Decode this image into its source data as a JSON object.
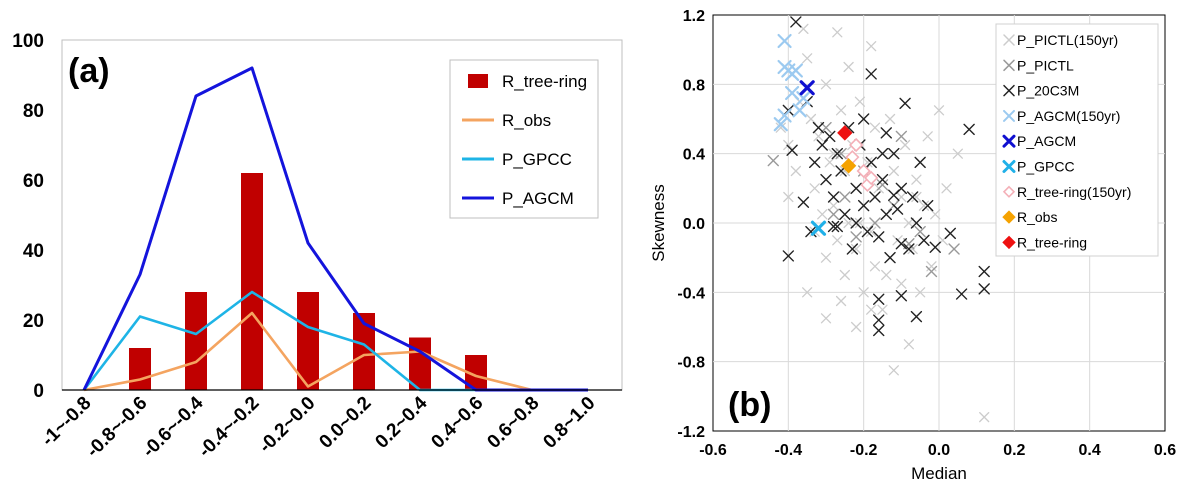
{
  "chart_data": [
    {
      "type": "bar",
      "panel_label": "(a)",
      "categories": [
        "-1~-0.8",
        "-0.8~-0.6",
        "-0.6~-0.4",
        "-0.4~-0.2",
        "-0.2~0.0",
        "0.0~0.2",
        "0.2~0.4",
        "0.4~0.6",
        "0.6~0.8",
        "0.8~1.0"
      ],
      "ylim": [
        0,
        100
      ],
      "yticks": [
        0,
        20,
        40,
        60,
        80,
        100
      ],
      "legend_position": "top-right",
      "grid": false,
      "series": [
        {
          "name": "R_tree-ring",
          "kind": "bar",
          "color": "#c00000",
          "values": [
            0,
            12,
            28,
            62,
            28,
            22,
            15,
            10,
            0,
            0
          ]
        },
        {
          "name": "R_obs",
          "kind": "line",
          "color": "#f4a460",
          "values": [
            0,
            3,
            8,
            22,
            1,
            10,
            11,
            4,
            0,
            0
          ]
        },
        {
          "name": "P_GPCC",
          "kind": "line",
          "color": "#1eb4e6",
          "values": [
            0,
            21,
            16,
            28,
            18,
            13,
            0,
            0,
            0,
            0
          ]
        },
        {
          "name": "P_AGCM",
          "kind": "line",
          "color": "#1414dc",
          "values": [
            0,
            33,
            84,
            92,
            42,
            19,
            11,
            0,
            0,
            0
          ]
        }
      ]
    },
    {
      "type": "scatter",
      "panel_label": "(b)",
      "xlabel": "Median",
      "ylabel": "Skewness",
      "xlim": [
        -0.6,
        0.6
      ],
      "ylim": [
        -1.2,
        1.2
      ],
      "xticks": [
        -0.6,
        -0.4,
        -0.2,
        0.0,
        0.2,
        0.4,
        0.6
      ],
      "yticks": [
        -1.2,
        -0.8,
        -0.4,
        0.0,
        0.4,
        0.8,
        1.2
      ],
      "xtick_labels": [
        "-0.6",
        "-0.4",
        "-0.2",
        "0.0",
        "0.2",
        "0.4",
        "0.6"
      ],
      "ytick_labels": [
        "-1.2",
        "-0.8",
        "-0.4",
        "0.0",
        "0.4",
        "0.8",
        "1.2"
      ],
      "legend_position": "top-right",
      "grid": true,
      "series": [
        {
          "name": "P_PICTL(150yr)",
          "marker": "x",
          "color": "#cccccc",
          "size": "small",
          "points": [
            [
              -0.42,
              0.55
            ],
            [
              -0.4,
              0.45
            ],
            [
              -0.38,
              0.3
            ],
            [
              -0.37,
              0.7
            ],
            [
              -0.36,
              1.12
            ],
            [
              -0.35,
              0.95
            ],
            [
              -0.34,
              0.6
            ],
            [
              -0.33,
              0.2
            ],
            [
              -0.32,
              0.5
            ],
            [
              -0.31,
              0.05
            ],
            [
              -0.3,
              -0.2
            ],
            [
              -0.3,
              0.8
            ],
            [
              -0.29,
              0.35
            ],
            [
              -0.28,
              0.1
            ],
            [
              -0.27,
              1.1
            ],
            [
              -0.27,
              -0.1
            ],
            [
              -0.26,
              0.65
            ],
            [
              -0.25,
              0.3
            ],
            [
              -0.25,
              -0.3
            ],
            [
              -0.24,
              0.9
            ],
            [
              -0.24,
              0.0
            ],
            [
              -0.23,
              0.45
            ],
            [
              -0.22,
              -0.15
            ],
            [
              -0.22,
              0.2
            ],
            [
              -0.21,
              0.7
            ],
            [
              -0.2,
              -0.4
            ],
            [
              -0.2,
              0.1
            ],
            [
              -0.19,
              0.35
            ],
            [
              -0.18,
              1.02
            ],
            [
              -0.18,
              -0.05
            ],
            [
              -0.17,
              0.55
            ],
            [
              -0.17,
              -0.25
            ],
            [
              -0.16,
              0.2
            ],
            [
              -0.15,
              -0.5
            ],
            [
              -0.15,
              0.4
            ],
            [
              -0.14,
              0.05
            ],
            [
              -0.13,
              -0.2
            ],
            [
              -0.13,
              0.6
            ],
            [
              -0.12,
              0.3
            ],
            [
              -0.11,
              -0.1
            ],
            [
              -0.1,
              0.15
            ],
            [
              -0.1,
              -0.35
            ],
            [
              -0.09,
              0.45
            ],
            [
              -0.08,
              0.0
            ],
            [
              -0.07,
              -0.15
            ],
            [
              -0.06,
              0.25
            ],
            [
              -0.05,
              -0.4
            ],
            [
              -0.04,
              0.1
            ],
            [
              -0.03,
              0.5
            ],
            [
              -0.02,
              -0.25
            ],
            [
              -0.01,
              0.05
            ],
            [
              0.0,
              0.65
            ],
            [
              0.01,
              -0.1
            ],
            [
              0.02,
              0.2
            ],
            [
              -0.35,
              -0.4
            ],
            [
              -0.3,
              -0.55
            ],
            [
              -0.22,
              -0.6
            ],
            [
              -0.18,
              -0.5
            ],
            [
              -0.12,
              -0.85
            ],
            [
              -0.08,
              -0.7
            ],
            [
              -0.26,
              -0.45
            ],
            [
              -0.05,
              0.35
            ],
            [
              0.05,
              0.4
            ],
            [
              0.12,
              -1.12
            ],
            [
              -0.4,
              0.15
            ],
            [
              -0.33,
              -0.05
            ],
            [
              -0.28,
              0.4
            ],
            [
              -0.21,
              0.0
            ],
            [
              -0.14,
              -0.3
            ],
            [
              -0.06,
              0.15
            ]
          ]
        },
        {
          "name": "P_PICTL",
          "marker": "x",
          "color": "#999999",
          "size": "medium",
          "points": [
            [
              -0.44,
              0.36
            ],
            [
              -0.3,
              0.55
            ],
            [
              -0.28,
              0.05
            ],
            [
              -0.25,
              0.15
            ],
            [
              -0.2,
              0.3
            ],
            [
              -0.17,
              0.0
            ],
            [
              -0.12,
              0.1
            ],
            [
              -0.1,
              0.5
            ],
            [
              -0.05,
              -0.05
            ],
            [
              -0.02,
              -0.28
            ],
            [
              0.04,
              -0.15
            ],
            [
              -0.26,
              0.4
            ],
            [
              -0.22,
              -0.08
            ],
            [
              -0.15,
              0.22
            ],
            [
              -0.08,
              -0.12
            ]
          ]
        },
        {
          "name": "P_20C3M",
          "marker": "x",
          "color": "#222222",
          "size": "medium",
          "points": [
            [
              -0.38,
              1.16
            ],
            [
              -0.35,
              0.7
            ],
            [
              -0.4,
              0.65
            ],
            [
              -0.39,
              0.42
            ],
            [
              -0.36,
              0.12
            ],
            [
              -0.4,
              -0.19
            ],
            [
              -0.33,
              0.35
            ],
            [
              -0.32,
              0.55
            ],
            [
              -0.31,
              0.45
            ],
            [
              -0.3,
              0.25
            ],
            [
              -0.29,
              0.5
            ],
            [
              -0.28,
              0.15
            ],
            [
              -0.28,
              -0.02
            ],
            [
              -0.27,
              0.4
            ],
            [
              -0.26,
              0.3
            ],
            [
              -0.25,
              0.05
            ],
            [
              -0.24,
              0.55
            ],
            [
              -0.23,
              -0.15
            ],
            [
              -0.22,
              0.2
            ],
            [
              -0.21,
              0.45
            ],
            [
              -0.2,
              0.1
            ],
            [
              -0.2,
              0.6
            ],
            [
              -0.19,
              -0.05
            ],
            [
              -0.18,
              0.35
            ],
            [
              -0.18,
              0.86
            ],
            [
              -0.17,
              0.15
            ],
            [
              -0.16,
              -0.08
            ],
            [
              -0.15,
              0.25
            ],
            [
              -0.14,
              0.05
            ],
            [
              -0.14,
              0.52
            ],
            [
              -0.13,
              -0.2
            ],
            [
              -0.12,
              0.4
            ],
            [
              -0.11,
              0.08
            ],
            [
              -0.1,
              -0.12
            ],
            [
              -0.1,
              0.2
            ],
            [
              -0.09,
              0.69
            ],
            [
              -0.08,
              -0.15
            ],
            [
              -0.07,
              0.15
            ],
            [
              -0.06,
              0.0
            ],
            [
              -0.05,
              0.35
            ],
            [
              -0.04,
              -0.1
            ],
            [
              -0.03,
              0.1
            ],
            [
              -0.01,
              -0.14
            ],
            [
              0.03,
              -0.06
            ],
            [
              0.06,
              -0.41
            ],
            [
              0.08,
              0.54
            ],
            [
              0.12,
              -0.28
            ],
            [
              0.12,
              -0.38
            ],
            [
              -0.16,
              -0.44
            ],
            [
              -0.16,
              -0.56
            ],
            [
              -0.16,
              -0.62
            ],
            [
              -0.1,
              -0.42
            ],
            [
              -0.06,
              -0.54
            ],
            [
              -0.34,
              -0.05
            ],
            [
              -0.27,
              -0.02
            ],
            [
              -0.22,
              0.0
            ],
            [
              -0.15,
              0.4
            ],
            [
              -0.12,
              0.16
            ]
          ]
        },
        {
          "name": "P_AGCM(150yr)",
          "marker": "x",
          "color": "#9ccaf0",
          "size": "large",
          "points": [
            [
              -0.41,
              1.05
            ],
            [
              -0.41,
              0.9
            ],
            [
              -0.4,
              0.88
            ],
            [
              -0.39,
              0.86
            ],
            [
              -0.39,
              0.75
            ],
            [
              -0.38,
              0.88
            ],
            [
              -0.37,
              0.65
            ],
            [
              -0.36,
              0.72
            ],
            [
              -0.42,
              0.57
            ],
            [
              -0.41,
              0.62
            ]
          ]
        },
        {
          "name": "P_AGCM",
          "marker": "x",
          "color": "#1010d0",
          "size": "bold",
          "points": [
            [
              -0.35,
              0.78
            ]
          ]
        },
        {
          "name": "P_GPCC",
          "marker": "x",
          "color": "#20b0e8",
          "size": "bold",
          "points": [
            [
              -0.32,
              -0.03
            ]
          ]
        },
        {
          "name": "R_tree-ring(150yr)",
          "marker": "diamond-open",
          "color": "#f4b0b8",
          "size": "medium",
          "points": [
            [
              -0.22,
              0.45
            ],
            [
              -0.2,
              0.3
            ],
            [
              -0.19,
              0.22
            ],
            [
              -0.23,
              0.38
            ],
            [
              -0.18,
              0.26
            ]
          ]
        },
        {
          "name": "R_obs",
          "marker": "diamond",
          "color": "#f5a200",
          "size": "large",
          "points": [
            [
              -0.24,
              0.33
            ]
          ]
        },
        {
          "name": "R_tree-ring",
          "marker": "diamond",
          "color": "#ee1111",
          "size": "large",
          "points": [
            [
              -0.25,
              0.52
            ]
          ]
        }
      ]
    }
  ]
}
